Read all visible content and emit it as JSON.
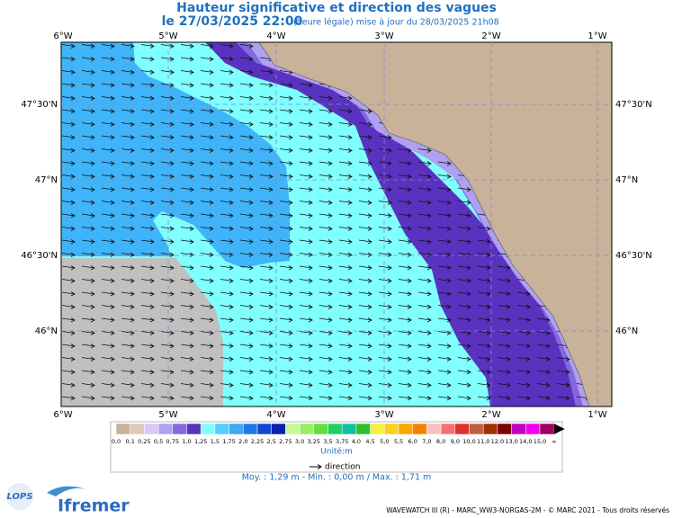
{
  "header": {
    "title": "Hauteur significative et direction des vagues",
    "date": "le 27/03/2025 22:00",
    "note": "(heure légale) mise à jour du 28/03/2025 21h08"
  },
  "map": {
    "lon_labels": [
      "6°W",
      "5°W",
      "4°W",
      "3°W",
      "2°W",
      "1°W"
    ],
    "lat_labels": [
      "47°30'N",
      "47°N",
      "46°30'N",
      "46°N"
    ]
  },
  "legend": {
    "colors": [
      "#c8b49c",
      "#dccab8",
      "#d8c8f8",
      "#b0a0f0",
      "#8468e0",
      "#5a32c0",
      "#80ffff",
      "#50d0ff",
      "#40a8f4",
      "#2078e8",
      "#1048d0",
      "#0820b0",
      "#c8f890",
      "#98f060",
      "#60e040",
      "#20d060",
      "#10c0a0",
      "#30c030",
      "#f8f040",
      "#f8d020",
      "#f8a800",
      "#f88000",
      "#f8c0c0",
      "#f87070",
      "#e03030",
      "#c06040",
      "#a03000",
      "#800000",
      "#c000c0",
      "#f000f0",
      "#a00060"
    ],
    "labels": [
      "0,0",
      "0,1",
      "0,25",
      "0,5",
      "0,75",
      "1,0",
      "1,25",
      "1,5",
      "1,75",
      "2,0",
      "2,25",
      "2,5",
      "2,75",
      "3,0",
      "3,25",
      "3,5",
      "3,75",
      "4,0",
      "4,5",
      "5,0",
      "5,5",
      "6,0",
      "7,0",
      "8,0",
      "9,0",
      "10,0",
      "11,0",
      "12,0",
      "13,0",
      "14,0",
      "15,0",
      "∞"
    ],
    "unit": "Unité:m",
    "direction": "direction"
  },
  "stats": "Moy. : 1,29 m   -   Min. : 0,00 m / Max. : 1,71 m",
  "logos": [
    "LOPS",
    "Ifremer"
  ],
  "footer": "WAVEWATCH III (R) - MARC_WW3-NORGAS-2M - © MARC 2021 - Tous droits réservés"
}
